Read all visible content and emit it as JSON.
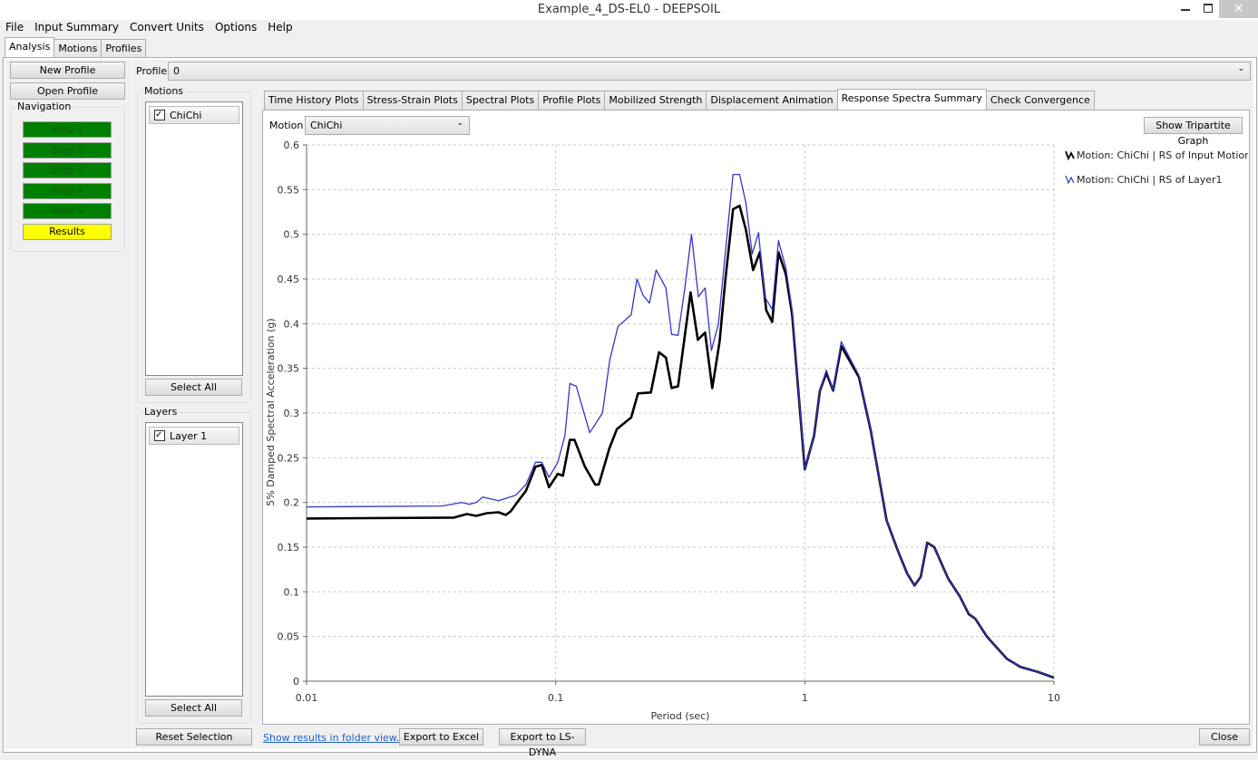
{
  "window": {
    "title": "Example_4_DS-EL0 - DEEPSOIL"
  },
  "menu": [
    "File",
    "Input Summary",
    "Convert Units",
    "Options",
    "Help"
  ],
  "main_tabs": [
    "Analysis",
    "Motions",
    "Profiles"
  ],
  "sidebar": {
    "buttons": [
      "New Profile",
      "Open Profile"
    ],
    "navigation_label": "Navigation",
    "steps": [
      "Step 1",
      "Step 2",
      "Step 3",
      "Step 4",
      "Step 5",
      "Results"
    ]
  },
  "profile": {
    "label": "Profile",
    "value": "0"
  },
  "motions": {
    "label": "Motions",
    "items": [
      "ChiChi"
    ],
    "select_all": "Select All"
  },
  "layers": {
    "label": "Layers",
    "items": [
      "Layer 1"
    ],
    "select_all": "Select All"
  },
  "reset_selection": "Reset Selection",
  "plot_tabs": [
    "Time History Plots",
    "Stress-Strain Plots",
    "Spectral Plots",
    "Profile Plots",
    "Mobilized Strength",
    "Displacement Animation",
    "Response Spectra Summary",
    "Check Convergence"
  ],
  "motion_select": {
    "label": "Motion",
    "value": "ChiChi"
  },
  "tripartite_button": "Show Tripartite Graph",
  "footer": {
    "link": "Show results in folder view...",
    "buttons": [
      "Export to Excel",
      "Export to LS-DYNA"
    ],
    "close": "Close"
  },
  "chart_data": {
    "type": "line",
    "x_label": "Period (sec)",
    "y_label": "5% Damped Spectral Acceleration (g)",
    "xscale": "log",
    "xlim": [
      0.01,
      10
    ],
    "xticks": [
      0.01,
      0.1,
      1,
      10
    ],
    "ylim": [
      0,
      0.6
    ],
    "yticks": [
      0,
      0.05,
      0.1,
      0.15,
      0.2,
      0.25,
      0.3,
      0.35,
      0.4,
      0.45,
      0.5,
      0.55,
      0.6
    ],
    "grid": true,
    "legend": "right",
    "series": [
      {
        "name": "Motion: ChiChi | RS of Input Motion",
        "color": "#000000",
        "x": [
          0.01,
          0.039,
          0.044,
          0.048,
          0.053,
          0.059,
          0.063,
          0.066,
          0.07,
          0.076,
          0.083,
          0.088,
          0.094,
          0.102,
          0.107,
          0.114,
          0.119,
          0.131,
          0.144,
          0.149,
          0.164,
          0.176,
          0.201,
          0.214,
          0.241,
          0.26,
          0.277,
          0.292,
          0.31,
          0.348,
          0.372,
          0.398,
          0.425,
          0.455,
          0.48,
          0.515,
          0.547,
          0.58,
          0.62,
          0.66,
          0.7,
          0.74,
          0.784,
          0.84,
          0.89,
          1.0,
          1.09,
          1.15,
          1.22,
          1.3,
          1.4,
          1.65,
          1.84,
          2.13,
          2.37,
          2.58,
          2.76,
          2.92,
          3.1,
          3.31,
          3.76,
          4.19,
          4.55,
          4.83,
          5.38,
          6.47,
          7.34,
          8.7,
          10
        ],
        "values": [
          0.182,
          0.183,
          0.187,
          0.185,
          0.188,
          0.189,
          0.186,
          0.19,
          0.2,
          0.213,
          0.24,
          0.242,
          0.217,
          0.232,
          0.23,
          0.27,
          0.27,
          0.24,
          0.22,
          0.22,
          0.26,
          0.282,
          0.295,
          0.322,
          0.323,
          0.368,
          0.362,
          0.328,
          0.33,
          0.435,
          0.382,
          0.39,
          0.328,
          0.38,
          0.45,
          0.528,
          0.532,
          0.505,
          0.46,
          0.48,
          0.415,
          0.402,
          0.48,
          0.455,
          0.41,
          0.237,
          0.275,
          0.325,
          0.345,
          0.325,
          0.375,
          0.34,
          0.28,
          0.18,
          0.145,
          0.12,
          0.107,
          0.117,
          0.155,
          0.15,
          0.115,
          0.095,
          0.075,
          0.07,
          0.05,
          0.025,
          0.016,
          0.01,
          0.004
        ]
      },
      {
        "name": "Motion: ChiChi | RS of Layer1",
        "color": "#3535c8",
        "x": [
          0.01,
          0.035,
          0.042,
          0.045,
          0.048,
          0.051,
          0.059,
          0.069,
          0.076,
          0.083,
          0.088,
          0.094,
          0.102,
          0.109,
          0.114,
          0.121,
          0.137,
          0.154,
          0.165,
          0.178,
          0.201,
          0.212,
          0.224,
          0.238,
          0.253,
          0.277,
          0.292,
          0.31,
          0.33,
          0.351,
          0.374,
          0.398,
          0.422,
          0.45,
          0.48,
          0.515,
          0.547,
          0.58,
          0.615,
          0.652,
          0.69,
          0.74,
          0.784,
          0.84,
          0.89,
          1.0,
          1.09,
          1.15,
          1.22,
          1.3,
          1.4,
          1.65,
          1.84,
          2.13,
          2.37,
          2.58,
          2.76,
          2.92,
          3.1,
          3.31,
          3.76,
          4.19,
          4.55,
          4.83,
          5.38,
          6.47,
          7.34,
          8.7,
          10
        ],
        "values": [
          0.195,
          0.196,
          0.2,
          0.198,
          0.2,
          0.206,
          0.202,
          0.208,
          0.22,
          0.245,
          0.245,
          0.228,
          0.245,
          0.275,
          0.333,
          0.33,
          0.278,
          0.3,
          0.36,
          0.397,
          0.41,
          0.45,
          0.432,
          0.423,
          0.46,
          0.44,
          0.388,
          0.387,
          0.44,
          0.5,
          0.43,
          0.44,
          0.37,
          0.4,
          0.48,
          0.567,
          0.567,
          0.535,
          0.478,
          0.502,
          0.43,
          0.416,
          0.493,
          0.462,
          0.415,
          0.237,
          0.275,
          0.325,
          0.348,
          0.325,
          0.38,
          0.342,
          0.28,
          0.18,
          0.145,
          0.12,
          0.107,
          0.117,
          0.155,
          0.15,
          0.115,
          0.095,
          0.075,
          0.07,
          0.05,
          0.025,
          0.016,
          0.01,
          0.004
        ]
      }
    ]
  }
}
